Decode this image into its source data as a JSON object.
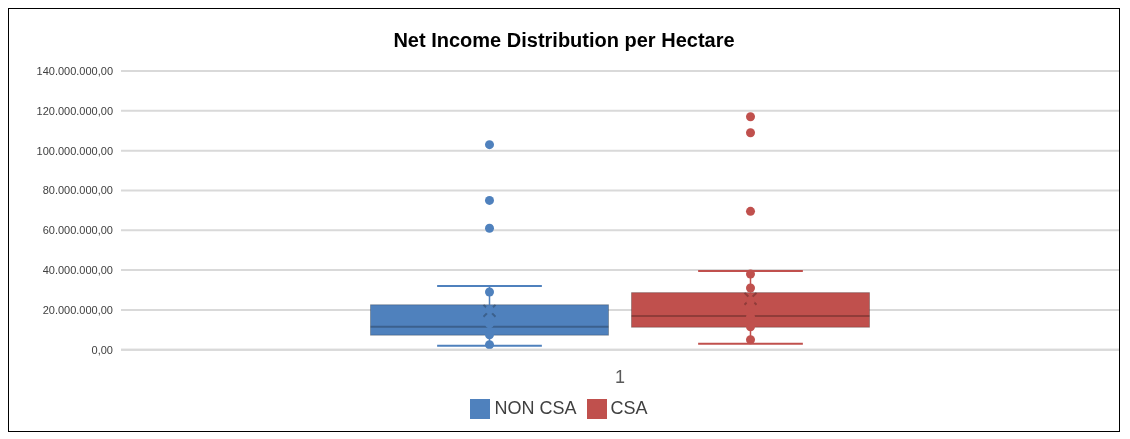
{
  "chart_data": {
    "type": "box",
    "title": "Net Income Distribution per Hectare",
    "categories": [
      "1"
    ],
    "series": [
      {
        "name": "NON CSA",
        "color": "#4f81bd",
        "boxes": [
          {
            "low": 2000000,
            "q1": 7300000,
            "median": 11500000,
            "q3": 22600000,
            "high": 32000000,
            "mean": 19600000,
            "outliers": [
              103000000,
              75000000,
              61000000,
              29000000,
              20000000,
              13000000,
              7500000,
              2500000
            ]
          }
        ]
      },
      {
        "name": "CSA",
        "color": "#c0504d",
        "boxes": [
          {
            "low": 3000000,
            "q1": 11300000,
            "median": 17000000,
            "q3": 28700000,
            "high": 39600000,
            "mean": 25600000,
            "outliers": [
              117000000,
              109000000,
              69500000,
              38000000,
              31000000,
              24700000,
              16500000,
              11500000,
              5000000
            ]
          }
        ]
      }
    ],
    "ylim": [
      0,
      140000000
    ],
    "yticks": [
      {
        "value": 0,
        "label": "0,00"
      },
      {
        "value": 20000000,
        "label": "20.000.000,00"
      },
      {
        "value": 40000000,
        "label": "40.000.000,00"
      },
      {
        "value": 60000000,
        "label": "60.000.000,00"
      },
      {
        "value": 80000000,
        "label": "80.000.000,00"
      },
      {
        "value": 100000000,
        "label": "100.000.000,00"
      },
      {
        "value": 120000000,
        "label": "120.000.000,00"
      },
      {
        "value": 140000000,
        "label": "140.000.000,00"
      }
    ],
    "grid": "y",
    "legend": "bottom",
    "marker": "circle"
  }
}
